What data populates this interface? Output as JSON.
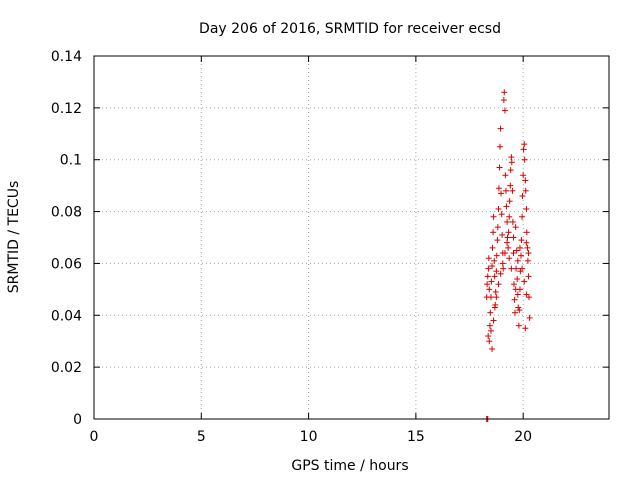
{
  "chart_data": {
    "type": "scatter",
    "title": "Day 206 of 2016, SRMTID for receiver ecsd",
    "xlabel": "GPS time / hours",
    "ylabel": "SRMTID / TECUs",
    "xlim": [
      0,
      24
    ],
    "ylim": [
      0,
      0.14
    ],
    "xticks": [
      0,
      5,
      10,
      15,
      20
    ],
    "xtick_labels": [
      "0",
      "5",
      "10",
      "15",
      "20"
    ],
    "yticks": [
      0,
      0.02,
      0.04,
      0.06,
      0.08,
      0.1,
      0.12,
      0.14
    ],
    "ytick_labels": [
      "0",
      "0.02",
      "0.04",
      "0.06",
      "0.08",
      "0.1",
      "0.12",
      "0.14"
    ],
    "grid": true,
    "marker": "+",
    "color": "#dd0000",
    "series": [
      {
        "name": "SRMTID",
        "points": [
          [
            18.3,
            0.0
          ],
          [
            18.32,
            0.0
          ],
          [
            18.35,
            0.0
          ],
          [
            18.3,
            0.047
          ],
          [
            18.32,
            0.052
          ],
          [
            18.35,
            0.055
          ],
          [
            18.38,
            0.058
          ],
          [
            18.4,
            0.062
          ],
          [
            18.42,
            0.05
          ],
          [
            18.45,
            0.036
          ],
          [
            18.47,
            0.041
          ],
          [
            18.5,
            0.047
          ],
          [
            18.52,
            0.053
          ],
          [
            18.55,
            0.059
          ],
          [
            18.57,
            0.066
          ],
          [
            18.6,
            0.072
          ],
          [
            18.62,
            0.078
          ],
          [
            18.65,
            0.061
          ],
          [
            18.67,
            0.055
          ],
          [
            18.7,
            0.044
          ],
          [
            18.72,
            0.049
          ],
          [
            18.75,
            0.057
          ],
          [
            18.77,
            0.063
          ],
          [
            18.8,
            0.069
          ],
          [
            18.82,
            0.074
          ],
          [
            18.85,
            0.081
          ],
          [
            18.87,
            0.089
          ],
          [
            18.9,
            0.097
          ],
          [
            18.92,
            0.105
          ],
          [
            18.95,
            0.112
          ],
          [
            18.97,
            0.087
          ],
          [
            19.0,
            0.079
          ],
          [
            19.02,
            0.071
          ],
          [
            19.05,
            0.064
          ],
          [
            19.07,
            0.058
          ],
          [
            19.1,
            0.123
          ],
          [
            19.12,
            0.126
          ],
          [
            19.15,
            0.119
          ],
          [
            19.17,
            0.094
          ],
          [
            19.2,
            0.088
          ],
          [
            19.22,
            0.082
          ],
          [
            19.25,
            0.076
          ],
          [
            19.27,
            0.07
          ],
          [
            19.3,
            0.066
          ],
          [
            19.32,
            0.072
          ],
          [
            19.35,
            0.078
          ],
          [
            19.37,
            0.084
          ],
          [
            19.4,
            0.09
          ],
          [
            19.42,
            0.096
          ],
          [
            19.45,
            0.101
          ],
          [
            19.47,
            0.099
          ],
          [
            19.5,
            0.088
          ],
          [
            19.52,
            0.076
          ],
          [
            19.55,
            0.064
          ],
          [
            19.57,
            0.052
          ],
          [
            19.6,
            0.046
          ],
          [
            19.62,
            0.041
          ],
          [
            19.65,
            0.05
          ],
          [
            19.67,
            0.058
          ],
          [
            19.7,
            0.065
          ],
          [
            19.72,
            0.054
          ],
          [
            19.75,
            0.048
          ],
          [
            19.77,
            0.043
          ],
          [
            19.8,
            0.036
          ],
          [
            19.82,
            0.042
          ],
          [
            19.85,
            0.05
          ],
          [
            19.87,
            0.057
          ],
          [
            19.9,
            0.063
          ],
          [
            19.92,
            0.069
          ],
          [
            19.95,
            0.078
          ],
          [
            19.97,
            0.086
          ],
          [
            20.0,
            0.094
          ],
          [
            20.02,
            0.104
          ],
          [
            20.05,
            0.106
          ],
          [
            20.07,
            0.1
          ],
          [
            20.1,
            0.092
          ],
          [
            20.12,
            0.088
          ],
          [
            20.15,
            0.081
          ],
          [
            20.17,
            0.072
          ],
          [
            20.2,
            0.066
          ],
          [
            20.22,
            0.061
          ],
          [
            20.25,
            0.055
          ],
          [
            20.27,
            0.047
          ],
          [
            20.3,
            0.039
          ],
          [
            20.1,
            0.035
          ],
          [
            20.15,
            0.068
          ],
          [
            20.25,
            0.064
          ],
          [
            18.37,
            0.032
          ],
          [
            18.42,
            0.03
          ],
          [
            18.5,
            0.034
          ],
          [
            18.55,
            0.027
          ],
          [
            18.62,
            0.038
          ],
          [
            18.68,
            0.043
          ],
          [
            18.75,
            0.047
          ],
          [
            18.85,
            0.052
          ],
          [
            18.95,
            0.056
          ],
          [
            19.05,
            0.06
          ],
          [
            19.15,
            0.064
          ],
          [
            19.25,
            0.068
          ],
          [
            19.35,
            0.062
          ],
          [
            19.45,
            0.058
          ],
          [
            19.55,
            0.07
          ],
          [
            19.65,
            0.074
          ],
          [
            19.75,
            0.061
          ],
          [
            19.85,
            0.066
          ],
          [
            19.95,
            0.058
          ],
          [
            20.05,
            0.053
          ],
          [
            20.15,
            0.048
          ]
        ]
      }
    ]
  }
}
